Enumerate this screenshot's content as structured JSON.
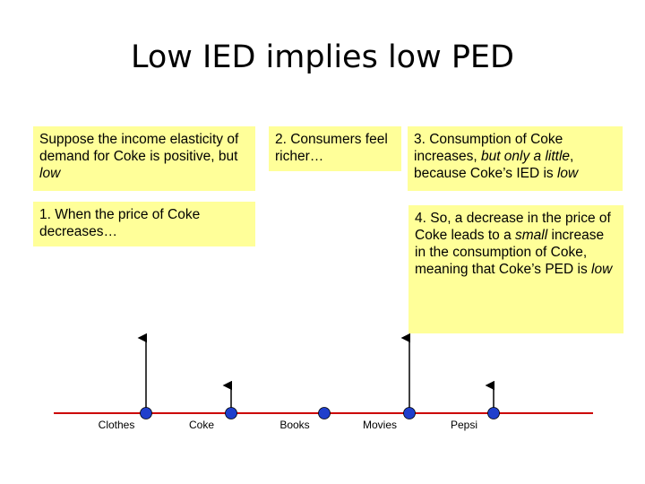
{
  "title": "Low IED implies low PED",
  "boxes": {
    "intro": {
      "pre": "Suppose the income elasticity of demand for Coke is positive, but ",
      "em": "low"
    },
    "step2": "2. Consumers feel richer…",
    "step3": {
      "pre": "3. Consumption of Coke increases, ",
      "em1": "but only a little",
      "mid": ", because Coke’s IED is ",
      "em2": "low"
    },
    "step1": "1. When the price of Coke decreases…",
    "step4": {
      "pre": "4. So, a decrease in the price of Coke leads to a ",
      "em1": "small",
      "mid": " increase in the consumption of Coke, meaning that Coke’s PED is ",
      "em2": "low"
    }
  },
  "goods": [
    {
      "label": "Clothes",
      "arrow": "long"
    },
    {
      "label": "Coke",
      "arrow": "short"
    },
    {
      "label": "Books",
      "arrow": "none"
    },
    {
      "label": "Movies",
      "arrow": "long"
    },
    {
      "label": "Pepsi",
      "arrow": "short"
    }
  ],
  "colors": {
    "axis": "#cc0000",
    "dot": "#1f3fcc",
    "box": "#ffff99",
    "arrow": "#000000"
  }
}
